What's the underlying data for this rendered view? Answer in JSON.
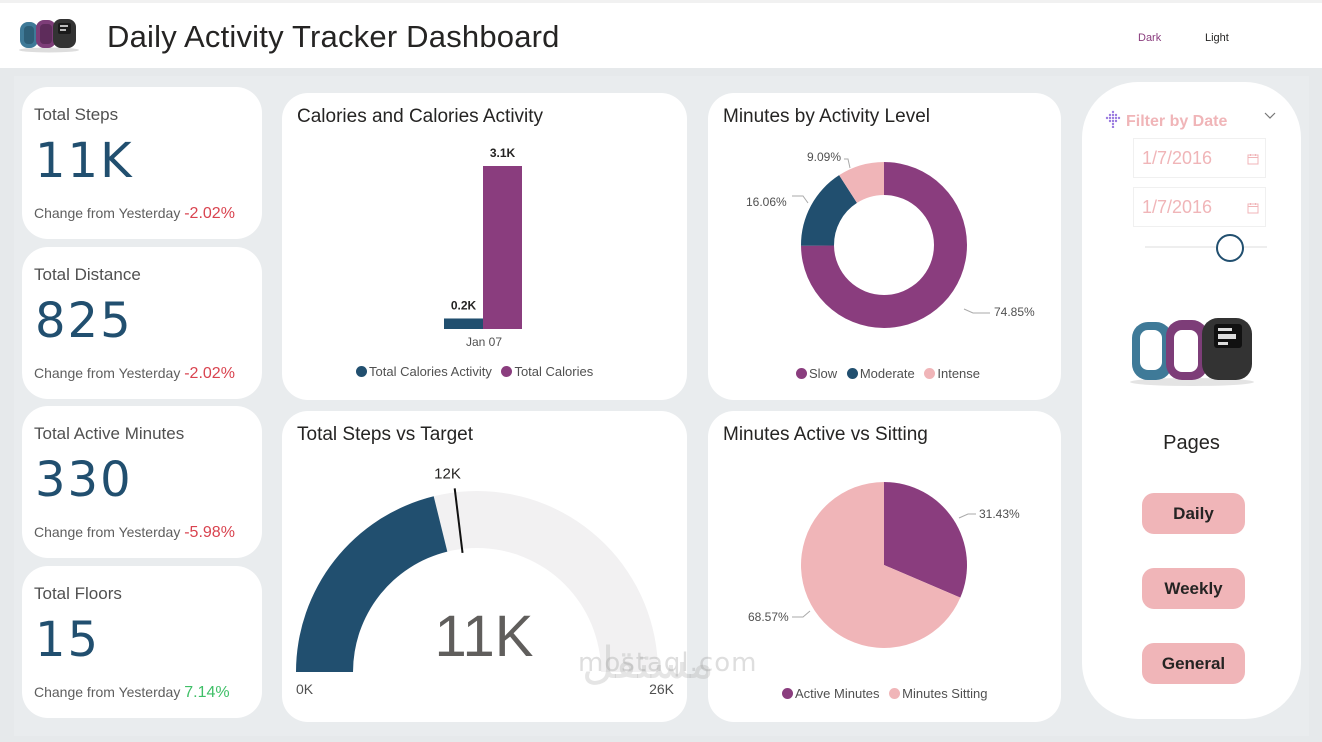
{
  "header": {
    "title": "Daily Activity Tracker Dashboard",
    "theme_dark": "Dark",
    "theme_light": "Light"
  },
  "kpis": [
    {
      "label": "Total Steps",
      "value": "11K",
      "change_label": "Change from Yesterday",
      "change": "-2.02%",
      "trend": "negative"
    },
    {
      "label": "Total Distance",
      "value": "825",
      "change_label": "Change from Yesterday",
      "change": "-2.02%",
      "trend": "negative"
    },
    {
      "label": "Total Active Minutes",
      "value": "330",
      "change_label": "Change from Yesterday",
      "change": "-5.98%",
      "trend": "negative"
    },
    {
      "label": "Total Floors",
      "value": "15",
      "change_label": "Change from Yesterday",
      "change": "7.14%",
      "trend": "positive"
    }
  ],
  "colors": {
    "navy": "#214f6f",
    "purple": "#8a3d7e",
    "pink": "#f0b5b8",
    "gauge_bg": "#f2f1f2",
    "negative": "#d9434f",
    "positive": "#3fbf67"
  },
  "chart_data": [
    {
      "id": "calories",
      "type": "bar",
      "title": "Calories and Calories Activity",
      "categories": [
        "Jan 07"
      ],
      "series": [
        {
          "name": "Total Calories Activity",
          "values": [
            200
          ],
          "label": "0.2K",
          "color": "#214f6f"
        },
        {
          "name": "Total Calories",
          "values": [
            3100
          ],
          "label": "3.1K",
          "color": "#8a3d7e"
        }
      ],
      "ylim": [
        0,
        3100
      ],
      "legend": "bottom"
    },
    {
      "id": "activity_level",
      "type": "pie",
      "variant": "donut",
      "title": "Minutes by Activity Level",
      "slices": [
        {
          "name": "Slow",
          "value": 74.85,
          "label": "74.85%",
          "color": "#8a3d7e"
        },
        {
          "name": "Moderate",
          "value": 16.06,
          "label": "16.06%",
          "color": "#214f6f"
        },
        {
          "name": "Intense",
          "value": 9.09,
          "label": "9.09%",
          "color": "#f0b5b8"
        }
      ],
      "legend": "bottom"
    },
    {
      "id": "steps_target",
      "type": "gauge",
      "title": "Total Steps vs Target",
      "value": 11000,
      "value_label": "11K",
      "min": 0,
      "min_label": "0K",
      "max": 26000,
      "max_label": "26K",
      "target": 12000,
      "target_label": "12K"
    },
    {
      "id": "active_sitting",
      "type": "pie",
      "title": "Minutes Active vs Sitting",
      "slices": [
        {
          "name": "Active Minutes",
          "value": 31.43,
          "label": "31.43%",
          "color": "#8a3d7e"
        },
        {
          "name": "Minutes Sitting",
          "value": 68.57,
          "label": "68.57%",
          "color": "#f0b5b8"
        }
      ],
      "legend": "bottom"
    }
  ],
  "filter": {
    "title": "Filter by Date",
    "start_date": "1/7/2016",
    "end_date": "1/7/2016",
    "slider_position": 0.7
  },
  "pages": {
    "title": "Pages",
    "buttons": [
      "Daily",
      "Weekly",
      "General"
    ]
  },
  "watermark": {
    "text": "mostaql.com",
    "arabic": "مستقل"
  }
}
